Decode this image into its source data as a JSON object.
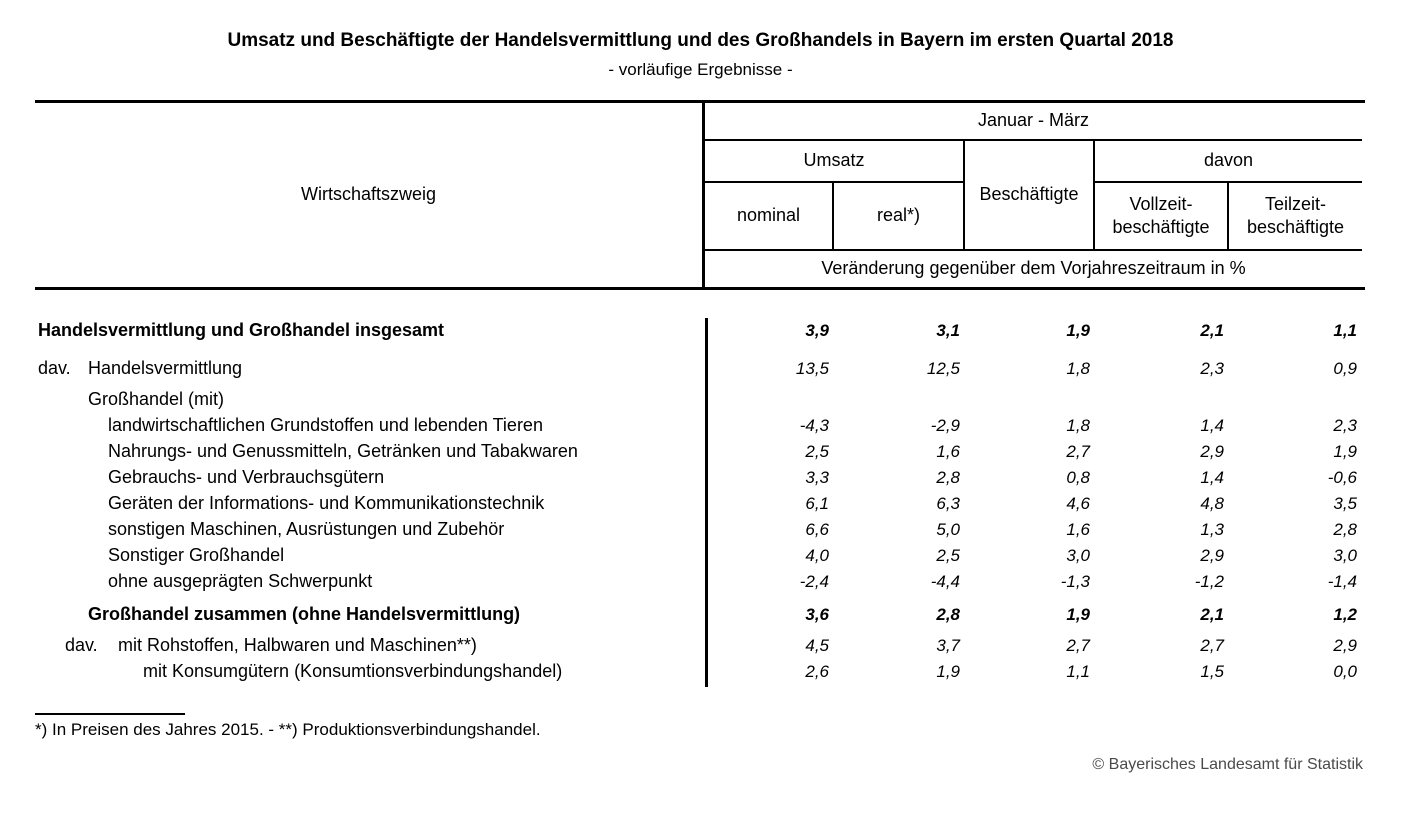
{
  "title": "Umsatz und Beschäftigte der Handelsvermittlung und des Großhandels in Bayern im ersten Quartal 2018",
  "subtitle": "- vorläufige Ergebnisse -",
  "table": {
    "header": {
      "col_economic_branch": "Wirtschaftszweig",
      "period": "Januar - März",
      "group_umsatz": "Umsatz",
      "col_nominal": "nominal",
      "col_real": "real*)",
      "col_beschaeftigte": "Beschäftigte",
      "group_davon": "davon",
      "col_vollzeit": "Vollzeit-beschäftigte",
      "col_teilzeit": "Teilzeit-beschäftigte",
      "unit_row": "Veränderung gegenüber dem Vorjahreszeitraum in %"
    },
    "rows": [
      {
        "label": "Handelsvermittlung und Großhandel insgesamt",
        "bold": true,
        "values": [
          "3,9",
          "3,1",
          "1,9",
          "2,1",
          "1,1"
        ]
      },
      {
        "prefix": "dav.",
        "label": "Handelsvermittlung",
        "values": [
          "13,5",
          "12,5",
          "1,8",
          "2,3",
          "0,9"
        ]
      },
      {
        "label": "Großhandel (mit)",
        "values": [
          "",
          "",
          "",
          "",
          ""
        ]
      },
      {
        "label": "landwirtschaftlichen Grundstoffen und lebenden Tieren",
        "values": [
          "-4,3",
          "-2,9",
          "1,8",
          "1,4",
          "2,3"
        ]
      },
      {
        "label": "Nahrungs- und Genussmitteln, Getränken und Tabakwaren",
        "values": [
          "2,5",
          "1,6",
          "2,7",
          "2,9",
          "1,9"
        ]
      },
      {
        "label": "Gebrauchs- und Verbrauchsgütern",
        "values": [
          "3,3",
          "2,8",
          "0,8",
          "1,4",
          "-0,6"
        ]
      },
      {
        "label": "Geräten der Informations- und Kommunikationstechnik",
        "values": [
          "6,1",
          "6,3",
          "4,6",
          "4,8",
          "3,5"
        ]
      },
      {
        "label": "sonstigen Maschinen, Ausrüstungen und Zubehör",
        "values": [
          "6,6",
          "5,0",
          "1,6",
          "1,3",
          "2,8"
        ]
      },
      {
        "label": "Sonstiger Großhandel",
        "values": [
          "4,0",
          "2,5",
          "3,0",
          "2,9",
          "3,0"
        ]
      },
      {
        "label": "ohne ausgeprägten Schwerpunkt",
        "values": [
          "-2,4",
          "-4,4",
          "-1,3",
          "-1,2",
          "-1,4"
        ]
      },
      {
        "label": "Großhandel zusammen (ohne Handelsvermittlung)",
        "bold": true,
        "values": [
          "3,6",
          "2,8",
          "1,9",
          "2,1",
          "1,2"
        ]
      },
      {
        "prefix": "dav.",
        "label": "mit Rohstoffen, Halbwaren und Maschinen**)",
        "values": [
          "4,5",
          "3,7",
          "2,7",
          "2,7",
          "2,9"
        ]
      },
      {
        "label": "mit Konsumgütern (Konsumtionsverbindungshandel)",
        "values": [
          "2,6",
          "1,9",
          "1,1",
          "1,5",
          "0,0"
        ]
      }
    ]
  },
  "footnote": "*) In Preisen des Jahres 2015. - **) Produktionsverbindungshandel.",
  "copyright": "© Bayerisches Landesamt für Statistik"
}
